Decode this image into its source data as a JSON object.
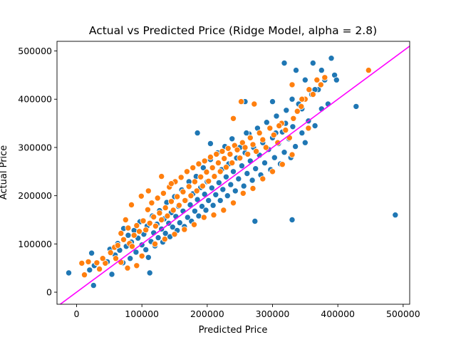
{
  "chart_data": {
    "type": "scatter",
    "title": "Actual vs Predicted Price (Ridge Model, alpha = 2.8)",
    "xlabel": "Predicted Price",
    "ylabel": "Actual Price",
    "xlim": [
      -30000,
      510000
    ],
    "ylim": [
      -25000,
      520000
    ],
    "xticks": [
      0,
      100000,
      200000,
      300000,
      400000,
      500000
    ],
    "yticks": [
      0,
      100000,
      200000,
      300000,
      400000,
      500000
    ],
    "xtick_labels": [
      "0",
      "100000",
      "200000",
      "300000",
      "400000",
      "500000"
    ],
    "ytick_labels": [
      "0",
      "100000",
      "200000",
      "300000",
      "400000",
      "500000"
    ],
    "grid": false,
    "reference_line": {
      "type": "identity",
      "color": "#ff00ff"
    },
    "series": [
      {
        "color": "#1f77b4",
        "points": [
          [
            -12000,
            40000
          ],
          [
            26000,
            14000
          ],
          [
            23000,
            81000
          ],
          [
            27000,
            55000
          ],
          [
            20000,
            46000
          ],
          [
            47000,
            63000
          ],
          [
            51000,
            89000
          ],
          [
            54000,
            37000
          ],
          [
            59000,
            77000
          ],
          [
            63000,
            101000
          ],
          [
            66000,
            87000
          ],
          [
            71000,
            61000
          ],
          [
            72000,
            132000
          ],
          [
            76000,
            95000
          ],
          [
            79000,
            118000
          ],
          [
            82000,
            70000
          ],
          [
            84000,
            104000
          ],
          [
            88000,
            128000
          ],
          [
            91000,
            83000
          ],
          [
            94000,
            112000
          ],
          [
            97000,
            146000
          ],
          [
            100000,
            98000
          ],
          [
            103000,
            120000
          ],
          [
            106000,
            88000
          ],
          [
            108000,
            137000
          ],
          [
            110000,
            72000
          ],
          [
            112000,
            40000
          ],
          [
            114000,
            105000
          ],
          [
            116000,
            158000
          ],
          [
            118000,
            123000
          ],
          [
            120000,
            96000
          ],
          [
            123000,
            141000
          ],
          [
            125000,
            113000
          ],
          [
            127000,
            169000
          ],
          [
            130000,
            131000
          ],
          [
            132000,
            104000
          ],
          [
            134000,
            152000
          ],
          [
            136000,
            122000
          ],
          [
            138000,
            186000
          ],
          [
            141000,
            143000
          ],
          [
            143000,
            115000
          ],
          [
            145000,
            165000
          ],
          [
            147000,
            135000
          ],
          [
            150000,
            198000
          ],
          [
            152000,
            157000
          ],
          [
            154000,
            128000
          ],
          [
            156000,
            178000
          ],
          [
            158000,
            144000
          ],
          [
            161000,
            212000
          ],
          [
            163000,
            168000
          ],
          [
            165000,
            136000
          ],
          [
            167000,
            190000
          ],
          [
            170000,
            155000
          ],
          [
            172000,
            229000
          ],
          [
            174000,
            181000
          ],
          [
            176000,
            147000
          ],
          [
            178000,
            204000
          ],
          [
            181000,
            168000
          ],
          [
            183000,
            240000
          ],
          [
            185000,
            192000
          ],
          [
            187000,
            158000
          ],
          [
            190000,
            217000
          ],
          [
            192000,
            178000
          ],
          [
            194000,
            258000
          ],
          [
            196000,
            203000
          ],
          [
            198000,
            170000
          ],
          [
            200000,
            229000
          ],
          [
            202000,
            190000
          ],
          [
            205000,
            275000
          ],
          [
            207000,
            216000
          ],
          [
            209000,
            180000
          ],
          [
            211000,
            241000
          ],
          [
            213000,
            202000
          ],
          [
            216000,
            289000
          ],
          [
            218000,
            227000
          ],
          [
            220000,
            190000
          ],
          [
            222000,
            254000
          ],
          [
            224000,
            213000
          ],
          [
            227000,
            302000
          ],
          [
            229000,
            239000
          ],
          [
            231000,
            200000
          ],
          [
            233000,
            266000
          ],
          [
            236000,
            223000
          ],
          [
            238000,
            318000
          ],
          [
            240000,
            250000
          ],
          [
            243000,
            210000
          ],
          [
            245000,
            278000
          ],
          [
            248000,
            235000
          ],
          [
            250000,
            300000
          ],
          [
            253000,
            262000
          ],
          [
            256000,
            220000
          ],
          [
            258000,
            289000
          ],
          [
            261000,
            246000
          ],
          [
            264000,
            328000
          ],
          [
            266000,
            272000
          ],
          [
            269000,
            232000
          ],
          [
            271000,
            300000
          ],
          [
            274000,
            256000
          ],
          [
            277000,
            340000
          ],
          [
            280000,
            284000
          ],
          [
            282000,
            243000
          ],
          [
            285000,
            310000
          ],
          [
            288000,
            268000
          ],
          [
            291000,
            352000
          ],
          [
            294000,
            296000
          ],
          [
            297000,
            254000
          ],
          [
            300000,
            320000
          ],
          [
            303000,
            279000
          ],
          [
            306000,
            365000
          ],
          [
            309000,
            308000
          ],
          [
            312000,
            266000
          ],
          [
            315000,
            332000
          ],
          [
            318000,
            290000
          ],
          [
            321000,
            377000
          ],
          [
            325000,
            318000
          ],
          [
            328000,
            279000
          ],
          [
            331000,
            343000
          ],
          [
            335000,
            302000
          ],
          [
            340000,
            390000
          ],
          [
            345000,
            330000
          ],
          [
            350000,
            310000
          ],
          [
            355000,
            355000
          ],
          [
            360000,
            410000
          ],
          [
            365000,
            345000
          ],
          [
            370000,
            420000
          ],
          [
            375000,
            380000
          ],
          [
            380000,
            440000
          ],
          [
            385000,
            390000
          ],
          [
            390000,
            485000
          ],
          [
            395000,
            450000
          ],
          [
            398000,
            440000
          ],
          [
            375000,
            460000
          ],
          [
            362000,
            475000
          ],
          [
            336000,
            460000
          ],
          [
            330000,
            400000
          ],
          [
            318000,
            475000
          ],
          [
            428000,
            385000
          ],
          [
            488000,
            160000
          ],
          [
            330000,
            150000
          ],
          [
            273000,
            147000
          ],
          [
            185000,
            330000
          ],
          [
            205000,
            308000
          ],
          [
            258000,
            395000
          ],
          [
            300000,
            395000
          ],
          [
            350000,
            440000
          ],
          [
            365000,
            420000
          ],
          [
            345000,
            380000
          ],
          [
            320000,
            350000
          ],
          [
            305000,
            330000
          ],
          [
            260000,
            330000
          ]
        ]
      },
      {
        "color": "#ff7f0e",
        "points": [
          [
            8000,
            60000
          ],
          [
            12000,
            36000
          ],
          [
            18000,
            63000
          ],
          [
            31000,
            61000
          ],
          [
            35000,
            48000
          ],
          [
            44000,
            60000
          ],
          [
            52000,
            82000
          ],
          [
            58000,
            93000
          ],
          [
            63000,
            97000
          ],
          [
            68000,
            122000
          ],
          [
            72000,
            109000
          ],
          [
            75000,
            150000
          ],
          [
            79000,
            133000
          ],
          [
            81000,
            101000
          ],
          [
            84000,
            181000
          ],
          [
            88000,
            118000
          ],
          [
            92000,
            138000
          ],
          [
            96000,
            126000
          ],
          [
            99000,
            199000
          ],
          [
            102000,
            148000
          ],
          [
            106000,
            129000
          ],
          [
            109000,
            171000
          ],
          [
            112000,
            143000
          ],
          [
            115000,
            185000
          ],
          [
            118000,
            156000
          ],
          [
            121000,
            137000
          ],
          [
            124000,
            195000
          ],
          [
            127000,
            164000
          ],
          [
            130000,
            150000
          ],
          [
            133000,
            205000
          ],
          [
            136000,
            175000
          ],
          [
            139000,
            158000
          ],
          [
            142000,
            218000
          ],
          [
            145000,
            188000
          ],
          [
            148000,
            170000
          ],
          [
            151000,
            229000
          ],
          [
            154000,
            198000
          ],
          [
            157000,
            180000
          ],
          [
            160000,
            238000
          ],
          [
            163000,
            208000
          ],
          [
            166000,
            190000
          ],
          [
            169000,
            250000
          ],
          [
            172000,
            219000
          ],
          [
            175000,
            200000
          ],
          [
            178000,
            258000
          ],
          [
            181000,
            229000
          ],
          [
            184000,
            210000
          ],
          [
            187000,
            266000
          ],
          [
            190000,
            239000
          ],
          [
            193000,
            220000
          ],
          [
            196000,
            272000
          ],
          [
            199000,
            249000
          ],
          [
            202000,
            230000
          ],
          [
            205000,
            280000
          ],
          [
            208000,
            258000
          ],
          [
            211000,
            240000
          ],
          [
            214000,
            286000
          ],
          [
            217000,
            268000
          ],
          [
            220000,
            250000
          ],
          [
            223000,
            292000
          ],
          [
            226000,
            277000
          ],
          [
            229000,
            259000
          ],
          [
            232000,
            298000
          ],
          [
            235000,
            286000
          ],
          [
            238000,
            268000
          ],
          [
            242000,
            304000
          ],
          [
            246000,
            295000
          ],
          [
            250000,
            278000
          ],
          [
            254000,
            310000
          ],
          [
            258000,
            300000
          ],
          [
            262000,
            286000
          ],
          [
            266000,
            320000
          ],
          [
            270000,
            306000
          ],
          [
            275000,
            292000
          ],
          [
            280000,
            330000
          ],
          [
            285000,
            316000
          ],
          [
            290000,
            300000
          ],
          [
            296000,
            340000
          ],
          [
            302000,
            326000
          ],
          [
            308000,
            310000
          ],
          [
            314000,
            350000
          ],
          [
            320000,
            336000
          ],
          [
            326000,
            320000
          ],
          [
            332000,
            360000
          ],
          [
            338000,
            375000
          ],
          [
            344000,
            385000
          ],
          [
            350000,
            400000
          ],
          [
            356000,
            420000
          ],
          [
            362000,
            410000
          ],
          [
            368000,
            440000
          ],
          [
            374000,
            430000
          ],
          [
            380000,
            445000
          ],
          [
            447000,
            460000
          ],
          [
            240000,
            360000
          ],
          [
            252000,
            395000
          ],
          [
            272000,
            390000
          ],
          [
            330000,
            430000
          ],
          [
            345000,
            400000
          ],
          [
            355000,
            340000
          ],
          [
            310000,
            345000
          ],
          [
            130000,
            240000
          ],
          [
            145000,
            225000
          ],
          [
            110000,
            210000
          ],
          [
            120000,
            100000
          ],
          [
            135000,
            110000
          ],
          [
            150000,
            120000
          ],
          [
            165000,
            130000
          ],
          [
            180000,
            140000
          ],
          [
            195000,
            155000
          ],
          [
            210000,
            160000
          ],
          [
            225000,
            170000
          ],
          [
            240000,
            185000
          ],
          [
            255000,
            205000
          ],
          [
            270000,
            215000
          ],
          [
            285000,
            235000
          ],
          [
            300000,
            250000
          ],
          [
            315000,
            265000
          ],
          [
            330000,
            285000
          ],
          [
            78000,
            50000
          ],
          [
            92000,
            55000
          ],
          [
            100000,
            75000
          ],
          [
            60000,
            70000
          ],
          [
            68000,
            62000
          ],
          [
            40000,
            70000
          ],
          [
            85000,
            95000
          ]
        ]
      }
    ]
  }
}
